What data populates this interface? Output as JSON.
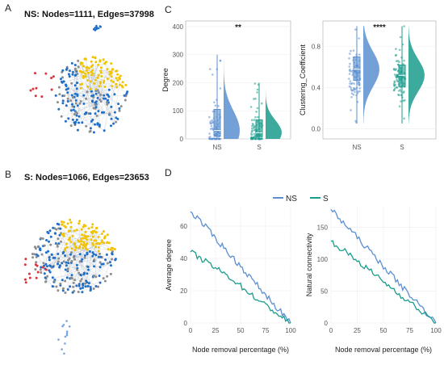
{
  "panels": {
    "a": "A",
    "b": "B",
    "c": "C",
    "d": "D"
  },
  "networks": [
    {
      "title": "NS: Nodes=1111, Edges=37998"
    },
    {
      "title": "S: Nodes=1066, Edges=23653"
    }
  ],
  "colors": {
    "NS": "#5b8fd0",
    "S": "#1a9c8c",
    "node_blue": "#1f6fc9",
    "node_yellow": "#f2c300",
    "node_gray": "#8d8d8d",
    "node_red": "#d8353b"
  },
  "chart_data": [
    {
      "type": "box",
      "ylabel": "Degree",
      "categories": [
        "NS",
        "S"
      ],
      "significance": "**",
      "ylim": [
        0,
        420
      ],
      "yticks": [
        0,
        100,
        200,
        300,
        400
      ],
      "series": [
        {
          "name": "NS",
          "whisker_low": 0,
          "q1": 10,
          "median": 30,
          "q3": 105,
          "whisker_high": 300,
          "max": 340
        },
        {
          "name": "S",
          "whisker_low": 0,
          "q1": 8,
          "median": 22,
          "q3": 68,
          "whisker_high": 200,
          "max": 210
        }
      ]
    },
    {
      "type": "box",
      "ylabel": "Clustering_Coefficient",
      "categories": [
        "NS",
        "S"
      ],
      "significance": "****",
      "ylim": [
        -0.1,
        1.05
      ],
      "yticks": [
        0.0,
        0.4,
        0.8
      ],
      "ytick_labels": [
        "0.0",
        "0.4",
        "0.8"
      ],
      "series": [
        {
          "name": "NS",
          "whisker_low": 0.05,
          "q1": 0.47,
          "median": 0.58,
          "q3": 0.7,
          "whisker_high": 1.0
        },
        {
          "name": "S",
          "whisker_low": 0.05,
          "q1": 0.41,
          "median": 0.52,
          "q3": 0.62,
          "whisker_high": 1.0
        }
      ]
    },
    {
      "type": "line",
      "ylabel": "Average degree",
      "xlabel": "Node removal percentage (%)",
      "xlim": [
        0,
        100
      ],
      "ylim": [
        0,
        72
      ],
      "xticks": [
        0,
        25,
        50,
        75,
        100
      ],
      "yticks": [
        0,
        20,
        40,
        60
      ],
      "series": [
        {
          "name": "NS",
          "x": [
            0,
            10,
            20,
            30,
            40,
            50,
            60,
            70,
            80,
            90,
            100
          ],
          "y": [
            69,
            63,
            56,
            49,
            42,
            35,
            28,
            21,
            14,
            7,
            0
          ]
        },
        {
          "name": "S",
          "x": [
            0,
            10,
            20,
            30,
            40,
            50,
            60,
            70,
            80,
            90,
            100
          ],
          "y": [
            44,
            40,
            36,
            32,
            28,
            23,
            18,
            13,
            9,
            4,
            0
          ]
        }
      ]
    },
    {
      "type": "line",
      "ylabel": "Natural connectivity",
      "xlabel": "Node removal percentage (%)",
      "xlim": [
        0,
        100
      ],
      "ylim": [
        0,
        182
      ],
      "xticks": [
        0,
        25,
        50,
        75,
        100
      ],
      "yticks": [
        0,
        50,
        100,
        150
      ],
      "series": [
        {
          "name": "NS",
          "x": [
            0,
            10,
            20,
            30,
            40,
            50,
            60,
            70,
            80,
            90,
            100
          ],
          "y": [
            178,
            160,
            143,
            125,
            107,
            89,
            71,
            53,
            36,
            18,
            0
          ]
        },
        {
          "name": "S",
          "x": [
            0,
            10,
            20,
            30,
            40,
            50,
            60,
            70,
            80,
            90,
            100
          ],
          "y": [
            128,
            116,
            104,
            91,
            78,
            65,
            52,
            39,
            26,
            13,
            0
          ]
        }
      ]
    }
  ],
  "legend": {
    "items": [
      "NS",
      "S"
    ]
  }
}
